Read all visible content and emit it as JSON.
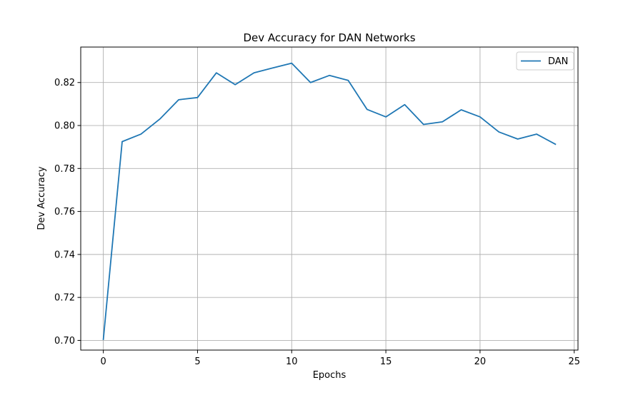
{
  "chart_data": {
    "type": "line",
    "title": "Dev Accuracy for DAN Networks",
    "xlabel": "Epochs",
    "ylabel": "Dev Accuracy",
    "xlim": [
      -1.2,
      25.2
    ],
    "ylim": [
      0.6955,
      0.8365
    ],
    "xticks": [
      0,
      5,
      10,
      15,
      20,
      25
    ],
    "yticks": [
      0.7,
      0.72,
      0.74,
      0.76,
      0.78,
      0.8,
      0.82
    ],
    "xtick_labels": [
      "0",
      "5",
      "10",
      "15",
      "20",
      "25"
    ],
    "ytick_labels": [
      "0.70",
      "0.72",
      "0.74",
      "0.76",
      "0.78",
      "0.80",
      "0.82"
    ],
    "grid": true,
    "legend": {
      "position": "top-right",
      "entries": [
        "DAN"
      ]
    },
    "series": [
      {
        "name": "DAN",
        "color": "#1f77b4",
        "x": [
          0,
          1,
          2,
          3,
          4,
          5,
          6,
          7,
          8,
          9,
          10,
          11,
          12,
          13,
          14,
          15,
          16,
          17,
          18,
          19,
          20,
          21,
          22,
          23,
          24
        ],
        "y": [
          0.7005,
          0.7925,
          0.796,
          0.803,
          0.812,
          0.813,
          0.8245,
          0.819,
          0.8245,
          0.8268,
          0.829,
          0.82,
          0.8233,
          0.821,
          0.8075,
          0.804,
          0.8097,
          0.8005,
          0.8017,
          0.8073,
          0.804,
          0.797,
          0.7937,
          0.796,
          0.7913
        ]
      }
    ]
  }
}
